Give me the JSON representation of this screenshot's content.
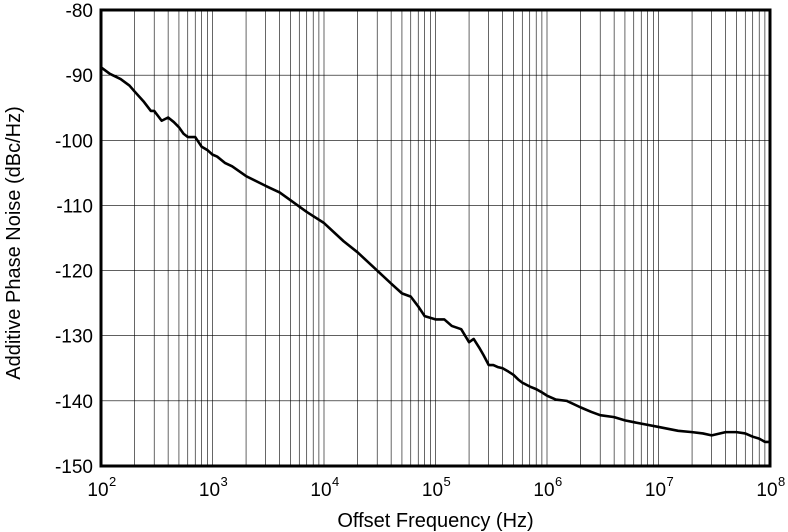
{
  "chart_data": {
    "type": "line",
    "title": "",
    "xlabel": "Offset Frequency (Hz)",
    "ylabel": "Additive Phase Noise (dBc/Hz)",
    "x_scale": "log",
    "xlim": [
      100,
      100000000
    ],
    "ylim": [
      -150,
      -80
    ],
    "grid": true,
    "legend": "none",
    "x_ticks": [
      {
        "base": "10",
        "exp": "2"
      },
      {
        "base": "10",
        "exp": "3"
      },
      {
        "base": "10",
        "exp": "4"
      },
      {
        "base": "10",
        "exp": "5"
      },
      {
        "base": "10",
        "exp": "6"
      },
      {
        "base": "10",
        "exp": "7"
      },
      {
        "base": "10",
        "exp": "8"
      }
    ],
    "y_ticks": [
      "-80",
      "-90",
      "-100",
      "-110",
      "-120",
      "-130",
      "-140",
      "-150"
    ],
    "line_color": "#000000",
    "series": [
      {
        "x": [
          100,
          120,
          150,
          180,
          200,
          240,
          280,
          300,
          350,
          400,
          450,
          500,
          550,
          600,
          700,
          800,
          900,
          1000,
          1100,
          1300,
          1500,
          2000,
          3000,
          4000,
          5000,
          7000,
          10000,
          15000,
          20000,
          30000,
          40000,
          50000,
          60000,
          70000,
          80000,
          100000,
          120000,
          140000,
          170000,
          200000,
          220000,
          250000,
          270000,
          300000,
          330000,
          360000,
          400000,
          450000,
          500000,
          550000,
          600000,
          700000,
          800000,
          900000,
          1000000,
          1200000,
          1500000,
          2000000,
          2500000,
          3000000,
          4000000,
          5000000,
          7000000,
          10000000,
          15000000,
          20000000,
          25000000,
          30000000,
          40000000,
          50000000,
          60000000,
          70000000,
          80000000,
          90000000,
          100000000
        ],
        "y": [
          -88.8,
          -89.8,
          -90.6,
          -91.6,
          -92.5,
          -94.0,
          -95.5,
          -95.5,
          -97.0,
          -96.5,
          -97.2,
          -98.0,
          -99.0,
          -99.5,
          -99.5,
          -101.0,
          -101.5,
          -102.2,
          -102.5,
          -103.5,
          -104.0,
          -105.5,
          -107.0,
          -108.0,
          -109.2,
          -111.0,
          -112.7,
          -115.5,
          -117.2,
          -120.0,
          -122.0,
          -123.5,
          -124.0,
          -125.5,
          -127.0,
          -127.5,
          -127.5,
          -128.5,
          -129.0,
          -131.0,
          -130.5,
          -132.0,
          -133.0,
          -134.5,
          -134.5,
          -134.8,
          -135.0,
          -135.5,
          -136.0,
          -136.7,
          -137.2,
          -137.8,
          -138.2,
          -138.7,
          -139.2,
          -139.8,
          -140.0,
          -141.0,
          -141.7,
          -142.2,
          -142.5,
          -143.0,
          -143.5,
          -144.0,
          -144.6,
          -144.8,
          -145.0,
          -145.3,
          -144.8,
          -144.8,
          -145.0,
          -145.5,
          -145.8,
          -146.3,
          -146.3
        ]
      }
    ]
  }
}
